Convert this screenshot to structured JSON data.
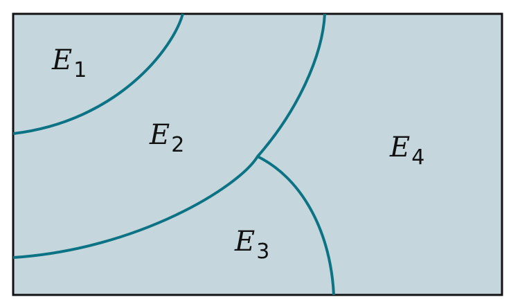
{
  "colors": {
    "background": "#c6d6dd",
    "frame": "#111111",
    "boundary": "#0b7384"
  },
  "regions": [
    {
      "letter": "E",
      "subscript": "1"
    },
    {
      "letter": "E",
      "subscript": "2"
    },
    {
      "letter": "E",
      "subscript": "3"
    },
    {
      "letter": "E",
      "subscript": "4"
    }
  ]
}
